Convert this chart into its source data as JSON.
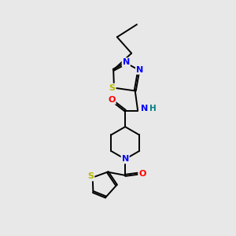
{
  "background_color": "#e8e8e8",
  "bond_color": "#000000",
  "atom_colors": {
    "N": "#0000ff",
    "O": "#ff0000",
    "S_thiadiazole": "#b8b800",
    "S_thiophene": "#b8b800",
    "H": "#008080",
    "C": "#000000"
  },
  "figsize": [
    3.0,
    3.0
  ],
  "dpi": 100
}
